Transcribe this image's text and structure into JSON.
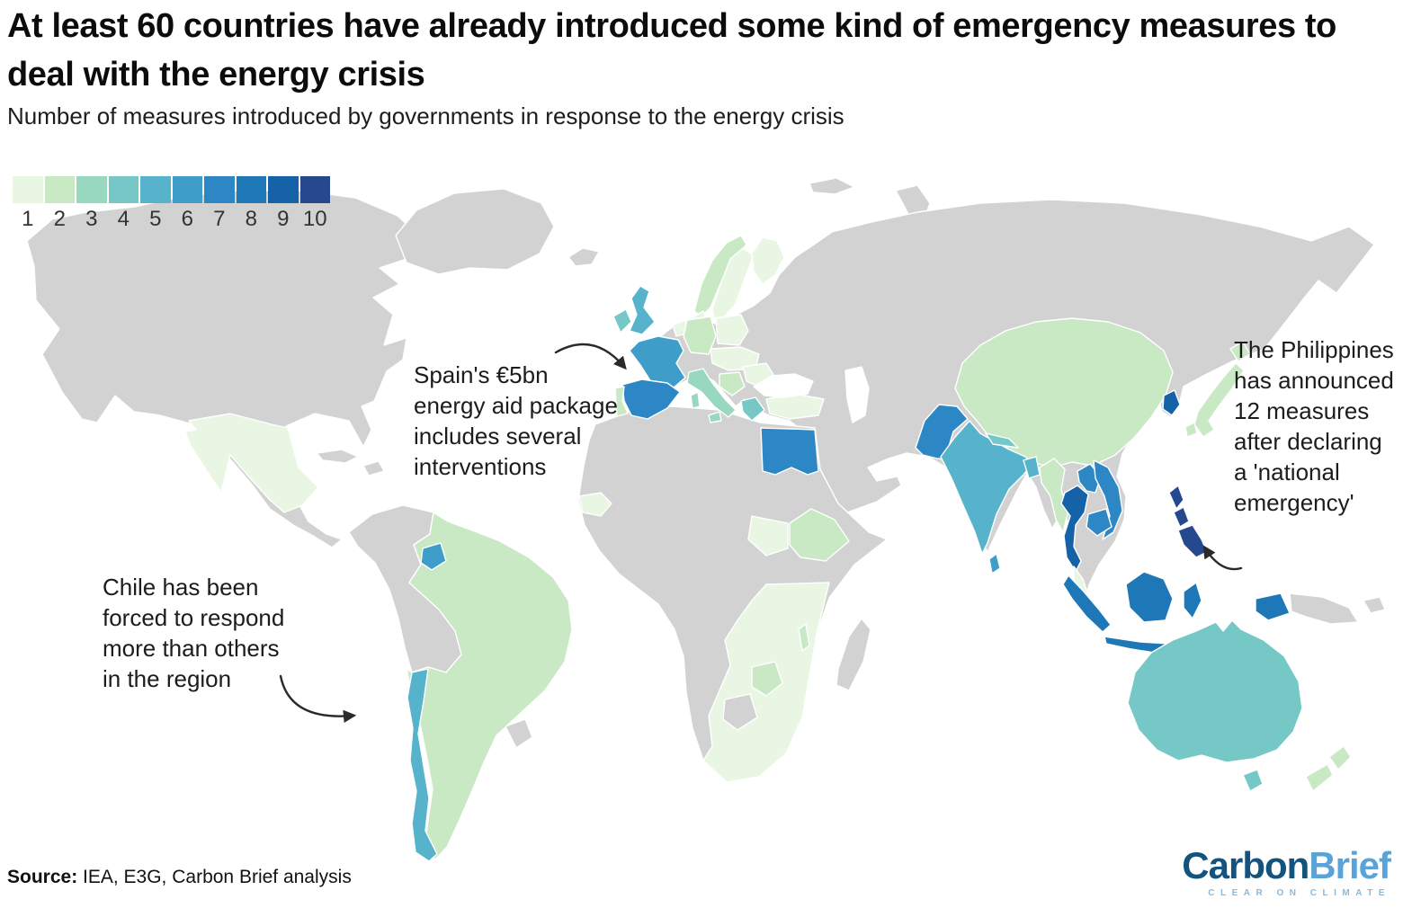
{
  "title": "At least 60 countries have already introduced some kind of emergency measures to deal with the energy crisis",
  "subtitle": "Number of measures introduced by governments in response to the energy crisis",
  "legend": {
    "labels": [
      "1",
      "2",
      "3",
      "4",
      "5",
      "6",
      "7",
      "8",
      "9",
      "10"
    ]
  },
  "annotations": {
    "spain": "Spain's €5bn\nenergy aid package\nincludes several\ninterventions",
    "philippines": "The Philippines\nhas announced\n12 measures\nafter declaring\na 'national\nemergency'",
    "chile": "Chile has been\nforced to respond\nmore than others\nin the region"
  },
  "source": {
    "label": "Source:",
    "text": " IEA, E3G, Carbon Brief analysis"
  },
  "logo": {
    "part1": "Carbon",
    "part2": "Brief",
    "tagline": "CLEAR ON CLIMATE",
    "color_dark": "#15537f",
    "color_light": "#5aa3d8",
    "color_tagline": "#8bb9d9"
  },
  "chart_data": {
    "type": "choropleth_map",
    "title": "At least 60 countries have already introduced some kind of emergency measures to deal with the energy crisis",
    "subtitle": "Number of measures introduced by governments in response to the energy crisis",
    "legend_scale": {
      "min": 1,
      "max": 10,
      "colors": [
        "#e9f6e3",
        "#c9e8c4",
        "#98d8be",
        "#75c8c6",
        "#57b3cb",
        "#3f9dca",
        "#2d87c4",
        "#1e77b7",
        "#1562a9",
        "#26488e"
      ]
    },
    "no_data_color": "#d2d2d2",
    "sea_color": "#ffffff",
    "countries": [
      {
        "name": "Mexico",
        "value": 1
      },
      {
        "name": "Senegal",
        "value": 1
      },
      {
        "name": "South Sudan",
        "value": 1
      },
      {
        "name": "South Africa",
        "value": 1
      },
      {
        "name": "Sweden",
        "value": 1
      },
      {
        "name": "Finland",
        "value": 1
      },
      {
        "name": "Denmark",
        "value": 1
      },
      {
        "name": "Poland",
        "value": 1
      },
      {
        "name": "Netherlands",
        "value": 1
      },
      {
        "name": "Czechia",
        "value": 1
      },
      {
        "name": "Romania",
        "value": 1
      },
      {
        "name": "Turkey",
        "value": 1
      },
      {
        "name": "Malaysia",
        "value": 1
      },
      {
        "name": "Brazil",
        "value": 2
      },
      {
        "name": "Argentina",
        "value": 2
      },
      {
        "name": "Norway",
        "value": 2
      },
      {
        "name": "Portugal",
        "value": 2
      },
      {
        "name": "Germany",
        "value": 2
      },
      {
        "name": "Ethiopia",
        "value": 2
      },
      {
        "name": "Zimbabwe",
        "value": 2
      },
      {
        "name": "Malawi",
        "value": 2
      },
      {
        "name": "China",
        "value": 2
      },
      {
        "name": "Myanmar",
        "value": 2
      },
      {
        "name": "Japan",
        "value": 2
      },
      {
        "name": "New Zealand",
        "value": 2
      },
      {
        "name": "Serbia",
        "value": 2
      },
      {
        "name": "Italy",
        "value": 3
      },
      {
        "name": "Ireland",
        "value": 4
      },
      {
        "name": "Greece",
        "value": 4
      },
      {
        "name": "Australia",
        "value": 4
      },
      {
        "name": "Nepal",
        "value": 4
      },
      {
        "name": "United Kingdom",
        "value": 5
      },
      {
        "name": "Chile",
        "value": 5
      },
      {
        "name": "India",
        "value": 5
      },
      {
        "name": "Bangladesh",
        "value": 5
      },
      {
        "name": "France",
        "value": 6
      },
      {
        "name": "French Guiana",
        "value": 6
      },
      {
        "name": "Sri Lanka",
        "value": 6
      },
      {
        "name": "Spain",
        "value": 7
      },
      {
        "name": "Egypt",
        "value": 7
      },
      {
        "name": "Pakistan",
        "value": 7
      },
      {
        "name": "Laos",
        "value": 7
      },
      {
        "name": "Vietnam",
        "value": 7
      },
      {
        "name": "Cambodia",
        "value": 7
      },
      {
        "name": "Indonesia",
        "value": 8
      },
      {
        "name": "Thailand",
        "value": 9
      },
      {
        "name": "South Korea",
        "value": 9
      },
      {
        "name": "Philippines",
        "value": 10
      }
    ]
  }
}
